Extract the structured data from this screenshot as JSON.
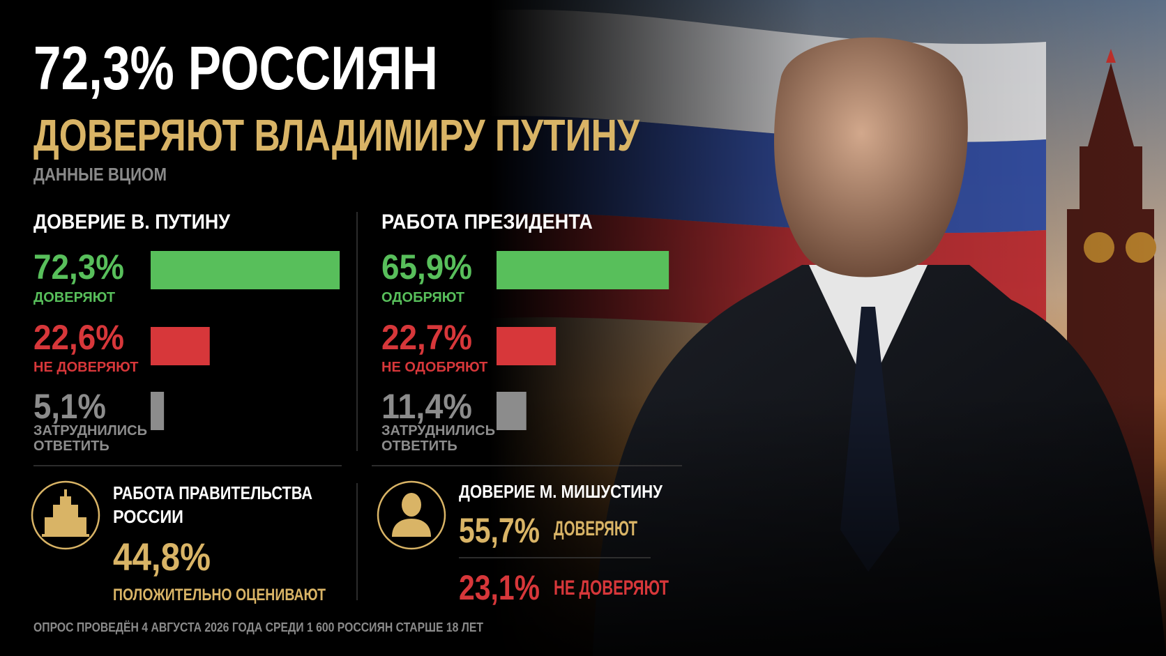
{
  "header": {
    "title": "72,3% РОССИЯН",
    "subtitle": "ДОВЕРЯЮТ ВЛАДИМИРУ ПУТИНУ",
    "source": "ДАННЫЕ ВЦИОМ"
  },
  "panels": [
    {
      "title": "ДОВЕРИЕ В. ПУТИНУ",
      "items": [
        {
          "value": 72.3,
          "value_label": "72,3%",
          "label": [
            "ДОВЕРЯЮТ"
          ],
          "color": "#58bf5b"
        },
        {
          "value": 22.6,
          "value_label": "22,6%",
          "label": [
            "НЕ ДОВЕРЯЮТ"
          ],
          "color": "#d7373a"
        },
        {
          "value": 5.1,
          "value_label": "5,1%",
          "label": [
            "ЗАТРУДНИЛИСЬ",
            "ОТВЕТИТЬ"
          ],
          "color": "#8c8c8c"
        }
      ]
    },
    {
      "title": "РАБОТА ПРЕЗИДЕНТА",
      "items": [
        {
          "value": 65.9,
          "value_label": "65,9%",
          "label": [
            "ОДОБРЯЮТ"
          ],
          "color": "#58bf5b"
        },
        {
          "value": 22.7,
          "value_label": "22,7%",
          "label": [
            "НЕ ОДОБРЯЮТ"
          ],
          "color": "#d7373a"
        },
        {
          "value": 11.4,
          "value_label": "11,4%",
          "label": [
            "ЗАТРУДНИЛИСЬ",
            "ОТВЕТИТЬ"
          ],
          "color": "#8c8c8c"
        }
      ]
    }
  ],
  "government": {
    "title": [
      "РАБОТА ПРАВИТЕЛЬСТВА",
      "РОССИИ"
    ],
    "value": "44,8%",
    "label": "ПОЛОЖИТЕЛЬНО ОЦЕНИВАЮТ"
  },
  "mishustin": {
    "title": "ДОВЕРИЕ М. МИШУСТИНУ",
    "items": [
      {
        "value": "55,7%",
        "label": "ДОВЕРЯЮТ",
        "color": "#d9b466"
      },
      {
        "value": "23,1%",
        "label": "НЕ ДОВЕРЯЮТ",
        "color": "#d7373a"
      }
    ]
  },
  "footer": "ОПРОС ПРОВЕДЁН 4 АВГУСТА 2026 ГОДА СРЕДИ 1 600 РОССИЯН СТАРШЕ 18 ЛЕТ"
}
